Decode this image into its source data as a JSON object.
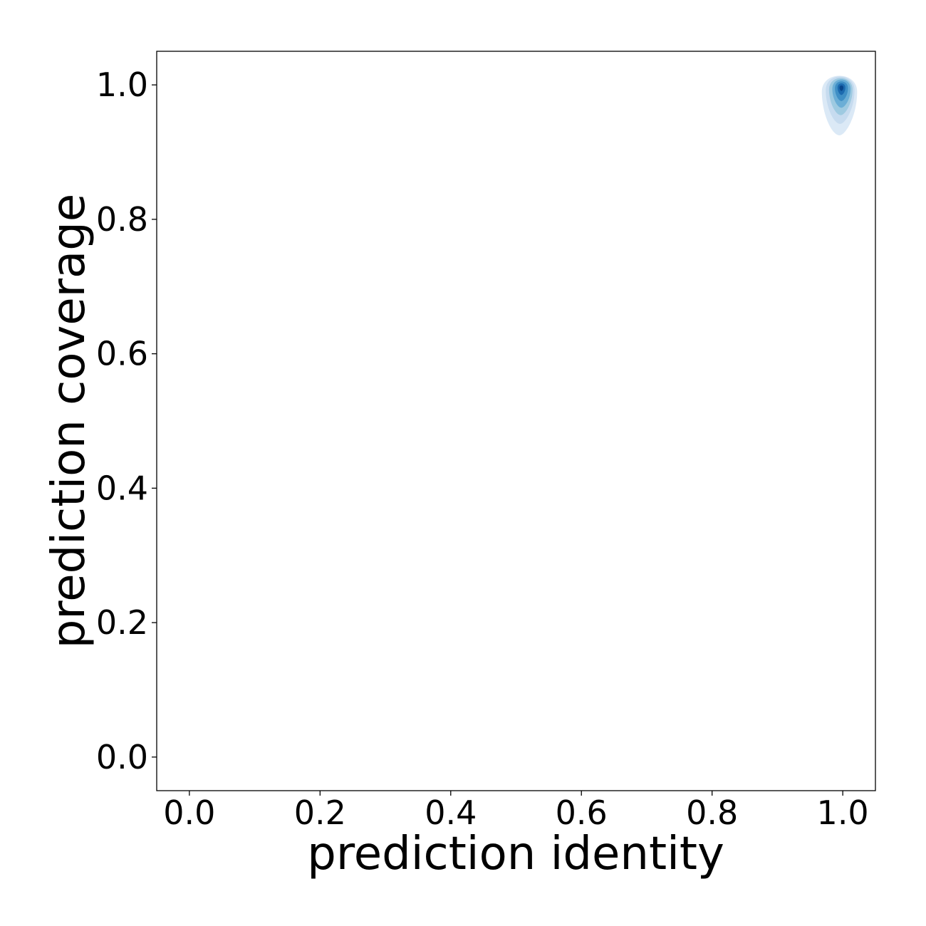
{
  "chart_data": {
    "type": "kde-contour",
    "title": "",
    "xlabel": "prediction identity",
    "ylabel": "prediction coverage",
    "xlim": [
      -0.05,
      1.05
    ],
    "ylim": [
      -0.05,
      1.05
    ],
    "xticks": [
      "0.0",
      "0.2",
      "0.4",
      "0.6",
      "0.8",
      "1.0"
    ],
    "yticks": [
      "0.0",
      "0.2",
      "0.4",
      "0.6",
      "0.8",
      "1.0"
    ],
    "grid": false,
    "colormap": "Blues",
    "colors": [
      "#dbe9f6",
      "#c6dbef",
      "#9ecae1",
      "#6baed6",
      "#3f8fc5",
      "#1c6aaf",
      "#08468b"
    ],
    "density_peak": {
      "x": 0.998,
      "y": 0.996
    },
    "levels": [
      {
        "x": 0.995,
        "y": 0.99,
        "rx": 0.027,
        "ry_top": 0.03,
        "ry_bottom": 0.065
      },
      {
        "x": 0.996,
        "y": 0.992,
        "rx": 0.022,
        "ry_top": 0.026,
        "ry_bottom": 0.05
      },
      {
        "x": 0.997,
        "y": 0.993,
        "rx": 0.018,
        "ry_top": 0.022,
        "ry_bottom": 0.038
      },
      {
        "x": 0.998,
        "y": 0.994,
        "rx": 0.014,
        "ry_top": 0.018,
        "ry_bottom": 0.028
      },
      {
        "x": 0.998,
        "y": 0.995,
        "rx": 0.01,
        "ry_top": 0.013,
        "ry_bottom": 0.019
      },
      {
        "x": 0.998,
        "y": 0.996,
        "rx": 0.006,
        "ry_top": 0.008,
        "ry_bottom": 0.011
      },
      {
        "x": 0.998,
        "y": 0.996,
        "rx": 0.003,
        "ry_top": 0.004,
        "ry_bottom": 0.005
      }
    ]
  }
}
